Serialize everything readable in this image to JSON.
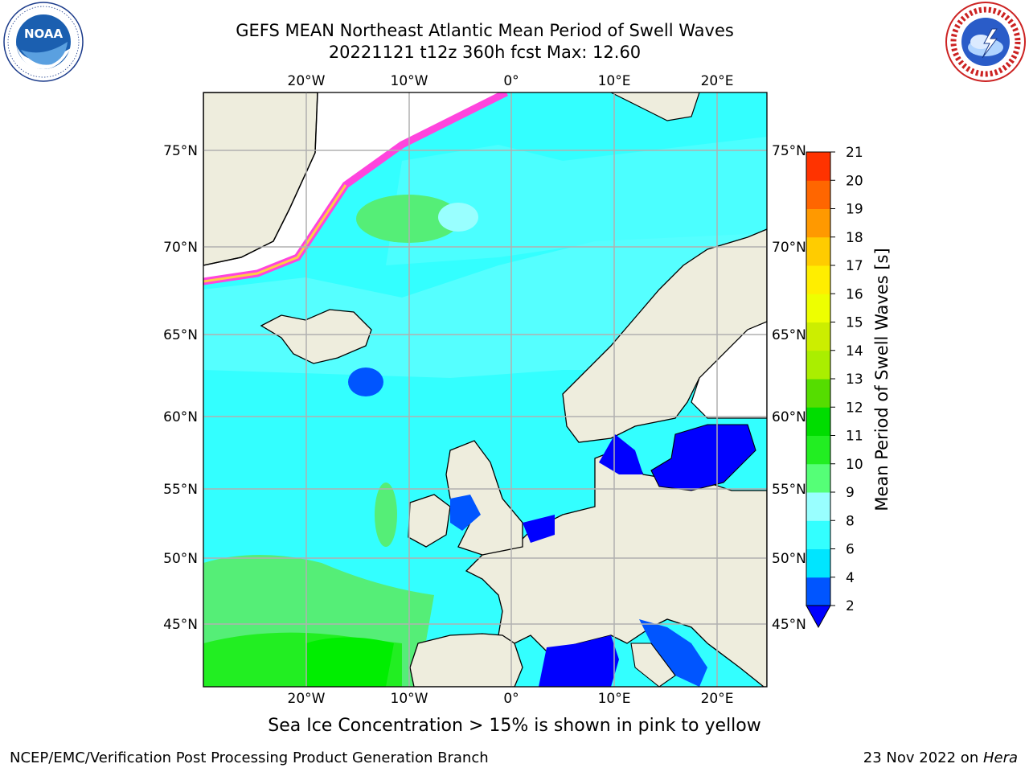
{
  "header": {
    "title_line1": "GEFS MEAN Northeast Atlantic Mean Period of Swell Waves",
    "title_line2": "20221121 t12z 360h fcst   Max: 12.60"
  },
  "logos": {
    "left": {
      "text": "NOAA",
      "ring_text": "NATIONAL OCEANIC AND ATMOSPHERIC ADMINISTRATION · U.S. DEPARTMENT OF COMMERCE"
    },
    "right": {
      "ring_text": "NATIONAL WEATHER SERVICE"
    }
  },
  "map": {
    "lon_labels_top": [
      "20°W",
      "10°W",
      "0°",
      "10°E",
      "20°E"
    ],
    "lon_labels_bottom": [
      "20°W",
      "10°W",
      "0°",
      "10°E",
      "20°E"
    ],
    "lat_labels_left": [
      "75°N",
      "70°N",
      "65°N",
      "60°N",
      "55°N",
      "50°N",
      "45°N"
    ],
    "lat_labels_right": [
      "75°N",
      "70°N",
      "65°N",
      "60°N",
      "55°N",
      "50°N",
      "45°N"
    ],
    "colors": {
      "land": "#eeeddd",
      "ocean": "#33ffff",
      "grid": "#b0b0b0"
    }
  },
  "colorbar": {
    "label": "Mean Period of Swell Waves [s]",
    "ticks": [
      "2",
      "4",
      "6",
      "8",
      "9",
      "10",
      "11",
      "12",
      "13",
      "14",
      "15",
      "16",
      "17",
      "18",
      "19",
      "20",
      "21"
    ],
    "colors": [
      "#0055ff",
      "#00e5ff",
      "#33ffff",
      "#99ffff",
      "#55ff77",
      "#22ee22",
      "#00dd00",
      "#55dd00",
      "#aaee00",
      "#ccee00",
      "#eeff00",
      "#ffee00",
      "#ffcc00",
      "#ff9900",
      "#ff6600",
      "#ff3300",
      "#ff0000"
    ],
    "under_color": "#0000ff"
  },
  "footer": {
    "note": "Sea Ice Concentration > 15% is shown in pink to yellow",
    "left": "NCEP/EMC/Verification Post Processing Product Generation Branch",
    "right_date": "23 Nov 2022 on ",
    "right_host": "Hera"
  }
}
